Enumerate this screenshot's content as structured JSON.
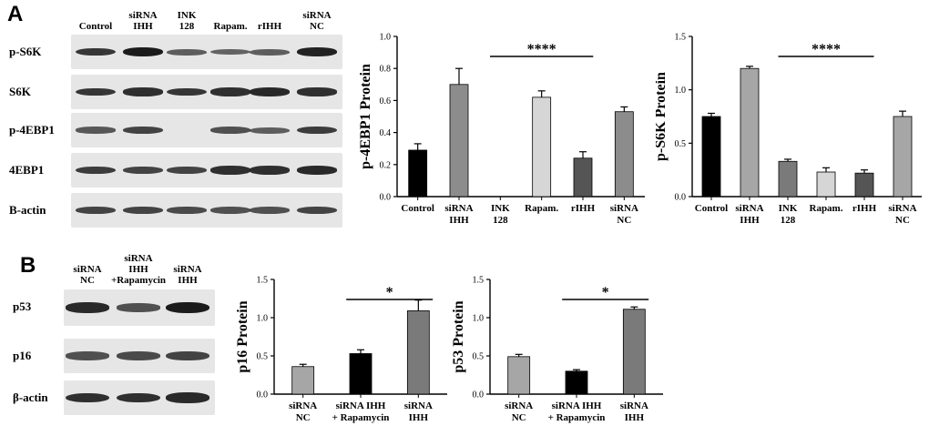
{
  "panel_a": {
    "letter": "A",
    "lanes": [
      [
        "Control"
      ],
      [
        "siRNA",
        "IHH"
      ],
      [
        "INK",
        "128"
      ],
      [
        "Rapam."
      ],
      [
        "rIHH"
      ],
      [
        "siRNA",
        "NC"
      ]
    ],
    "rows": [
      "p-S6K",
      "S6K",
      "p-4EBP1",
      "4EBP1",
      "B-actin"
    ]
  },
  "panel_b": {
    "letter": "B",
    "lanes": [
      [
        "siRNA",
        "NC"
      ],
      [
        "siRNA",
        "IHH",
        "+Rapamycin"
      ],
      [
        "siRNA",
        "IHH"
      ]
    ],
    "rows": [
      "p53",
      "p16",
      "β-actin"
    ]
  },
  "chart_data": [
    {
      "type": "bar",
      "categories": [
        [
          "Control"
        ],
        [
          "siRNA",
          "IHH"
        ],
        [
          "INK",
          "128"
        ],
        [
          "Rapam."
        ],
        [
          "rIHH"
        ],
        [
          "siRNA",
          "NC"
        ]
      ],
      "values": [
        0.29,
        0.7,
        0.0,
        0.62,
        0.24,
        0.53
      ],
      "errors": [
        0.04,
        0.1,
        0.0,
        0.04,
        0.04,
        0.03
      ],
      "colors": [
        "#000000",
        "#8c8c8c",
        "#8c8c8c",
        "#d6d6d6",
        "#555555",
        "#8c8c8c"
      ],
      "ylabel": "p-4EBP1 Protein",
      "ylim": [
        0,
        1.0
      ],
      "yticks": [
        "0.0",
        "0.2",
        "0.4",
        "0.6",
        "0.8",
        "1.0"
      ],
      "annotation": "****"
    },
    {
      "type": "bar",
      "categories": [
        [
          "Control"
        ],
        [
          "siRNA",
          "IHH"
        ],
        [
          "INK",
          "128"
        ],
        [
          "Rapam."
        ],
        [
          "rIHH"
        ],
        [
          "siRNA",
          "NC"
        ]
      ],
      "values": [
        0.75,
        1.2,
        0.33,
        0.23,
        0.22,
        0.75
      ],
      "errors": [
        0.03,
        0.02,
        0.02,
        0.04,
        0.03,
        0.05
      ],
      "colors": [
        "#000000",
        "#a6a6a6",
        "#7a7a7a",
        "#d6d6d6",
        "#555555",
        "#a6a6a6"
      ],
      "ylabel": "p-S6K Protein",
      "ylim": [
        0,
        1.5
      ],
      "yticks": [
        "0.0",
        "0.5",
        "1.0",
        "1.5"
      ],
      "annotation": "****"
    },
    {
      "type": "bar",
      "categories": [
        [
          "siRNA",
          "NC"
        ],
        [
          "siRNA IHH",
          "+ Rapamycin"
        ],
        [
          "siRNA",
          "IHH"
        ]
      ],
      "values": [
        0.36,
        0.53,
        1.09
      ],
      "errors": [
        0.03,
        0.05,
        0.14
      ],
      "colors": [
        "#a6a6a6",
        "#000000",
        "#7a7a7a"
      ],
      "ylabel": "p16 Protein",
      "ylim": [
        0,
        1.5
      ],
      "yticks": [
        "0.0",
        "0.5",
        "1.0",
        "1.5"
      ],
      "annotation": "*"
    },
    {
      "type": "bar",
      "categories": [
        [
          "siRNA",
          "NC"
        ],
        [
          "siRNA IHH",
          "+ Rapamycin"
        ],
        [
          "siRNA",
          "IHH"
        ]
      ],
      "values": [
        0.49,
        0.3,
        1.11
      ],
      "errors": [
        0.03,
        0.02,
        0.03
      ],
      "colors": [
        "#a6a6a6",
        "#000000",
        "#7a7a7a"
      ],
      "ylabel": "p53 Protein",
      "ylim": [
        0,
        1.5
      ],
      "yticks": [
        "0.0",
        "0.5",
        "1.0",
        "1.5"
      ],
      "annotation": "*"
    }
  ]
}
